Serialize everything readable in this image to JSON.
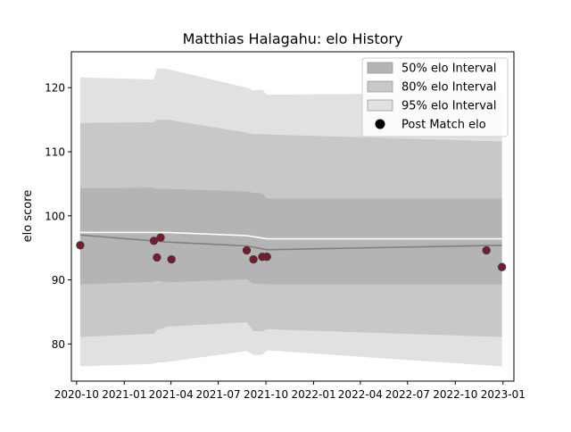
{
  "chart_data": {
    "type": "line",
    "title": "Matthias Halagahu: elo History",
    "xlabel": "",
    "ylabel": "elo score",
    "xlim": [
      "2020-09-21",
      "2023-01-22"
    ],
    "ylim": [
      74.2,
      125.6
    ],
    "x_ticks": [
      "2020-10",
      "2021-01",
      "2021-04",
      "2021-07",
      "2021-10",
      "2022-01",
      "2022-04",
      "2022-07",
      "2022-10",
      "2023-01"
    ],
    "y_ticks": [
      80,
      90,
      100,
      110,
      120
    ],
    "grid": false,
    "legend_position": "top-right",
    "legend": [
      {
        "label": "50% elo Interval",
        "kind": "patch",
        "color": "#b4b4b4"
      },
      {
        "label": "80% elo Interval",
        "kind": "patch",
        "color": "#c8c8c8"
      },
      {
        "label": "95% elo Interval",
        "kind": "patch",
        "color": "#e1e1e1"
      },
      {
        "label": "Post Match elo",
        "kind": "marker",
        "color": "#000000"
      }
    ],
    "bands": [
      {
        "name": "95% elo Interval",
        "color": "#e1e1e1",
        "x": [
          "2020-10-08",
          "2021-02-27",
          "2021-03-05",
          "2021-03-25",
          "2021-08-25",
          "2021-09-07",
          "2021-09-24",
          "2021-10-03",
          "2022-12-30"
        ],
        "lower": [
          76.5,
          76.9,
          77.1,
          77.2,
          78.9,
          78.3,
          78.3,
          79.0,
          76.5
        ],
        "upper": [
          121.6,
          121.3,
          123.0,
          122.9,
          120.0,
          119.6,
          119.7,
          118.9,
          119.2
        ]
      },
      {
        "name": "80% elo Interval",
        "color": "#c8c8c8",
        "x": [
          "2020-10-08",
          "2021-02-27",
          "2021-03-05",
          "2021-03-25",
          "2021-08-25",
          "2021-09-07",
          "2021-09-24",
          "2021-10-03",
          "2022-12-30"
        ],
        "lower": [
          81.1,
          81.6,
          82.2,
          82.7,
          83.4,
          82.0,
          82.0,
          82.3,
          81.1
        ],
        "upper": [
          114.5,
          114.6,
          115.0,
          115.0,
          113.0,
          112.7,
          112.8,
          112.7,
          111.6
        ]
      },
      {
        "name": "50% elo Interval",
        "color": "#b4b4b4",
        "x": [
          "2020-10-08",
          "2021-02-27",
          "2021-03-05",
          "2021-03-25",
          "2021-08-25",
          "2021-09-07",
          "2021-09-24",
          "2021-10-03",
          "2022-12-30"
        ],
        "lower": [
          89.3,
          89.7,
          89.9,
          89.6,
          90.1,
          89.4,
          89.4,
          89.3,
          89.3
        ],
        "upper": [
          104.3,
          104.4,
          104.2,
          104.2,
          103.8,
          103.6,
          103.5,
          102.7,
          102.7
        ]
      }
    ],
    "series": [
      {
        "kind": "line",
        "color": "#ffffff",
        "x": [
          "2020-10-08",
          "2021-03-25",
          "2021-08-25",
          "2021-10-03",
          "2022-12-30"
        ],
        "y": [
          97.4,
          97.4,
          96.9,
          96.4,
          96.4
        ]
      },
      {
        "kind": "line",
        "color": "#808080",
        "x": [
          "2020-10-08",
          "2021-03-25",
          "2021-08-25",
          "2021-10-03",
          "2022-12-30"
        ],
        "y": [
          97.0,
          95.9,
          95.3,
          94.7,
          95.4
        ]
      },
      {
        "name": "Post Match elo",
        "kind": "scatter",
        "color": "#7b1a2c",
        "x": [
          "2020-10-08",
          "2021-02-27",
          "2021-03-05",
          "2021-03-12",
          "2021-04-02",
          "2021-08-25",
          "2021-09-07",
          "2021-09-24",
          "2021-10-03",
          "2022-11-30",
          "2022-12-30"
        ],
        "y": [
          95.4,
          96.1,
          93.5,
          96.6,
          93.2,
          94.6,
          93.2,
          93.6,
          93.6,
          94.6,
          92.0
        ]
      }
    ]
  }
}
